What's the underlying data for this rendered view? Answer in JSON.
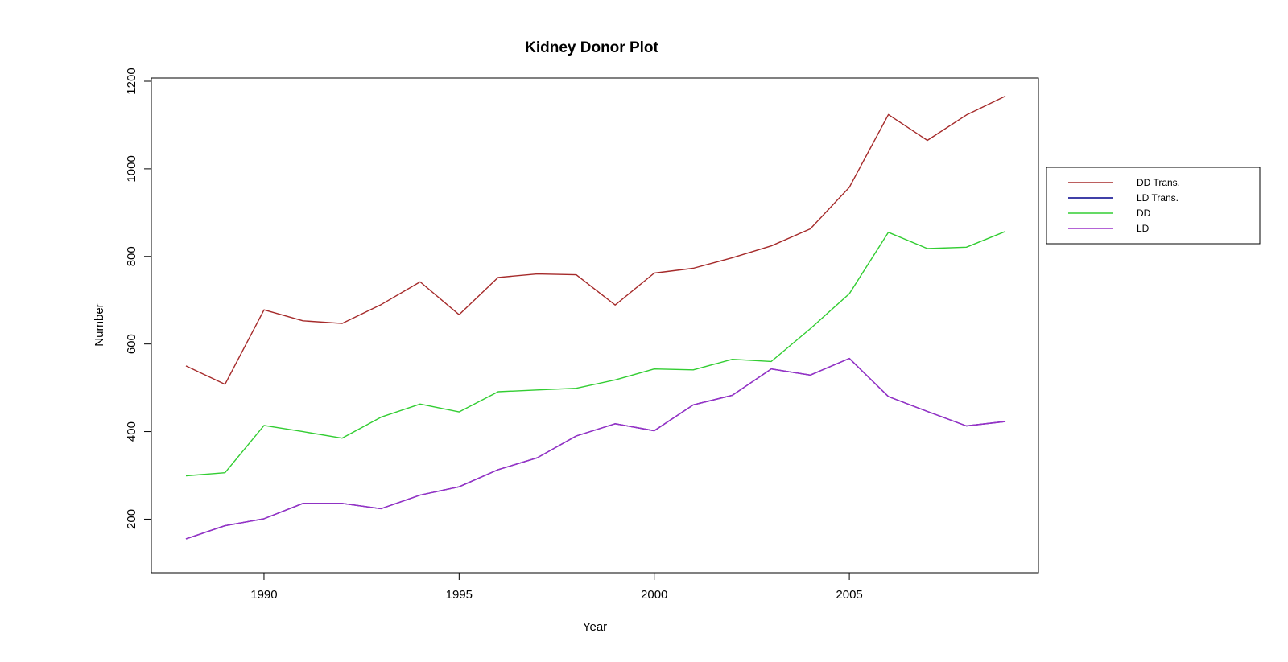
{
  "chart_data": {
    "type": "line",
    "title": "Kidney Donor Plot",
    "xlabel": "Year",
    "ylabel": "Number",
    "xlim": [
      1987.5,
      2009.5
    ],
    "ylim": [
      120,
      1200
    ],
    "x_ticks": [
      1990,
      1995,
      2000,
      2005
    ],
    "y_ticks": [
      200,
      400,
      600,
      800,
      1000,
      1200
    ],
    "grid": false,
    "legend_position": "right",
    "x": [
      1988,
      1989,
      1990,
      1991,
      1992,
      1993,
      1994,
      1995,
      1996,
      1997,
      1998,
      1999,
      2000,
      2001,
      2002,
      2003,
      2004,
      2005,
      2006,
      2007,
      2008,
      2009
    ],
    "series": [
      {
        "name": "DD Trans.",
        "color": "#a52a2a",
        "values": [
          550,
          508,
          678,
          653,
          647,
          690,
          742,
          667,
          752,
          760,
          758,
          689,
          762,
          773,
          797,
          824,
          863,
          958,
          1124,
          1065,
          1123,
          1166
        ]
      },
      {
        "name": "LD Trans.",
        "color": "#00008b",
        "values": [
          155,
          185,
          201,
          236,
          236,
          224,
          255,
          274,
          313,
          340,
          390,
          418,
          402,
          461,
          483,
          543,
          529,
          567,
          480,
          446,
          413,
          423
        ]
      },
      {
        "name": "DD",
        "color": "#32cd32",
        "values": [
          299,
          306,
          414,
          400,
          385,
          433,
          463,
          445,
          491,
          495,
          499,
          518,
          543,
          541,
          565,
          560,
          635,
          715,
          855,
          818,
          821,
          857
        ]
      },
      {
        "name": "LD",
        "color": "#9b30c8",
        "values": [
          155,
          185,
          201,
          236,
          236,
          224,
          255,
          274,
          313,
          340,
          390,
          418,
          402,
          461,
          483,
          543,
          529,
          567,
          480,
          446,
          413,
          423
        ]
      }
    ]
  }
}
